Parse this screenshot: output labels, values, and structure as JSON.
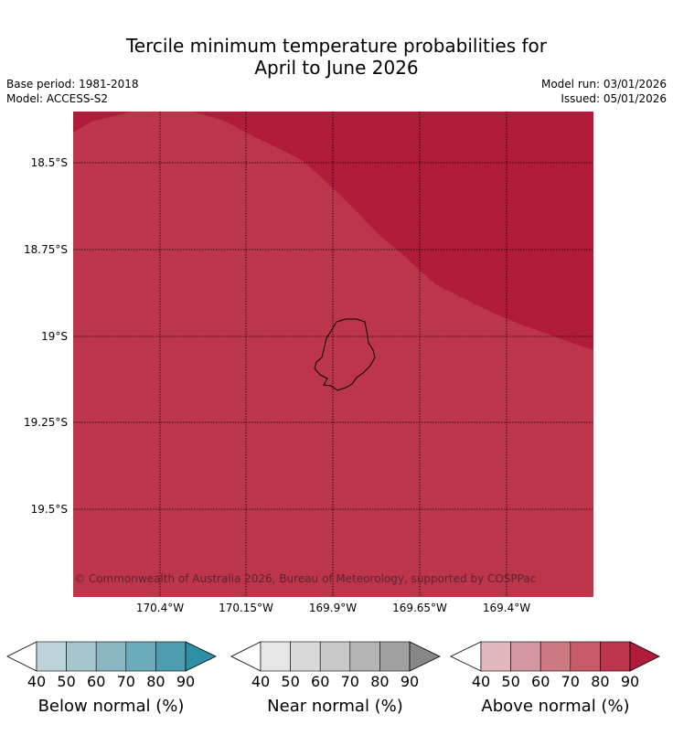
{
  "title": {
    "line1": "Tercile minimum temperature probabilities for",
    "line2": "April to June 2026"
  },
  "meta": {
    "base_period": "Base period: 1981-2018",
    "model": "Model: ACCESS-S2",
    "model_run": "Model run: 03/01/2026",
    "issued": "Issued: 05/01/2026"
  },
  "map": {
    "latitude_labels": [
      "18.5°S",
      "18.75°S",
      "19°S",
      "19.25°S",
      "19.5°S"
    ],
    "longitude_labels": [
      "170.4°W",
      "170.15°W",
      "169.9°W",
      "169.65°W",
      "169.4°W"
    ],
    "fill_colors": {
      "above_80_90": "#bd354a",
      "above_90_plus": "#b01c3a"
    },
    "copyright": "© Commonwealth of Australia 2026, Bureau of Meteorology, supported by COSPPac"
  },
  "colorbars": [
    {
      "title": "Below normal (%)",
      "ticks": [
        "40",
        "50",
        "60",
        "70",
        "80",
        "90"
      ],
      "colors": [
        "#bdd3da",
        "#a5c6cd",
        "#88b6c2",
        "#6cabba",
        "#4d9db0",
        "#2e8fa5"
      ]
    },
    {
      "title": "Near normal (%)",
      "ticks": [
        "40",
        "50",
        "60",
        "70",
        "80",
        "90"
      ],
      "colors": [
        "#e5e5e5",
        "#d9d9d9",
        "#c8c8c8",
        "#b4b4b4",
        "#a0a0a0",
        "#878787"
      ]
    },
    {
      "title": "Above normal (%)",
      "ticks": [
        "40",
        "50",
        "60",
        "70",
        "80",
        "90"
      ],
      "colors": [
        "#e1b6bc",
        "#d5979f",
        "#cc7981",
        "#c55b67",
        "#bd354a",
        "#b01c3a"
      ]
    }
  ]
}
